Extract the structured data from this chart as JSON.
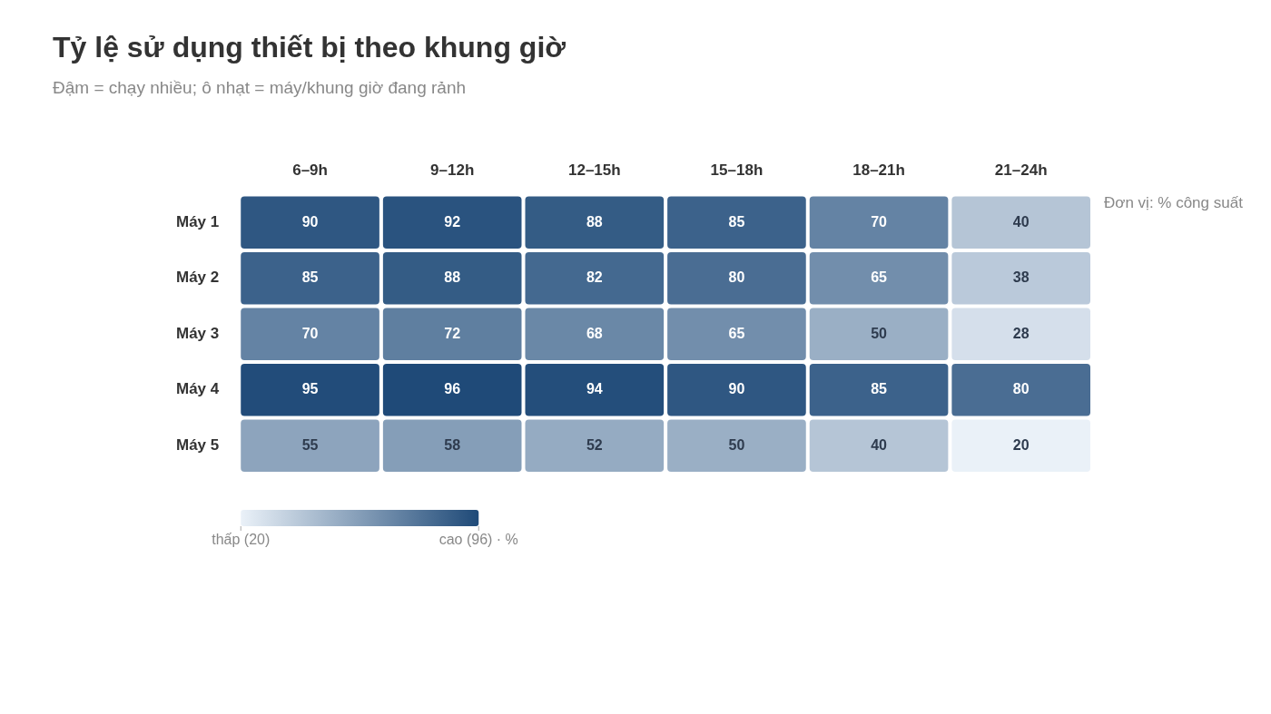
{
  "chart_data": {
    "type": "heatmap",
    "title": "Tỷ lệ sử dụng thiết bị theo khung giờ",
    "subtitle": "Đậm = chạy nhiều; ô nhạt = máy/khung giờ đang rảnh",
    "annotations": [
      "Đơn vị: % công suất"
    ],
    "categories": [
      "6–9h",
      "9–12h",
      "12–15h",
      "15–18h",
      "18–21h",
      "21–24h"
    ],
    "y_categories": [
      "Máy 1",
      "Máy 2",
      "Máy 3",
      "Máy 4",
      "Máy 5"
    ],
    "cells": [
      [
        90,
        92,
        88,
        85,
        70,
        40
      ],
      [
        85,
        88,
        82,
        80,
        65,
        38
      ],
      [
        70,
        72,
        68,
        65,
        50,
        28
      ],
      [
        95,
        96,
        94,
        90,
        85,
        80
      ],
      [
        55,
        58,
        52,
        50,
        40,
        20
      ]
    ],
    "data_labels": true,
    "clim": [
      20,
      96
    ],
    "cticks": [
      {
        "value": 20,
        "label": "thấp (20)"
      },
      {
        "value": 96,
        "label": "cao (96) · %"
      }
    ]
  }
}
